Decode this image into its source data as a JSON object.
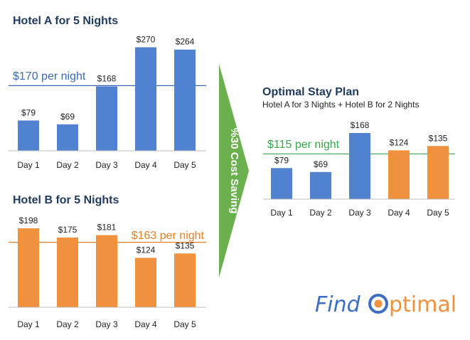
{
  "chart_data": [
    {
      "type": "bar",
      "title": "Hotel A for 5 Nights",
      "categories": [
        "Day 1",
        "Day 2",
        "Day 3",
        "Day 4",
        "Day 5"
      ],
      "values": [
        79,
        69,
        168,
        270,
        264
      ],
      "value_labels": [
        "$79",
        "$69",
        "$168",
        "$270",
        "$264"
      ],
      "colors": [
        "#5182d0",
        "#5182d0",
        "#5182d0",
        "#5182d0",
        "#5182d0"
      ],
      "reference_line": {
        "value": 170,
        "label": "$170 per night",
        "color": "#3c69b8"
      }
    },
    {
      "type": "bar",
      "title": "Hotel B for 5 Nights",
      "categories": [
        "Day 1",
        "Day 2",
        "Day 3",
        "Day 4",
        "Day 5"
      ],
      "values": [
        198,
        175,
        181,
        124,
        135
      ],
      "value_labels": [
        "$198",
        "$175",
        "$181",
        "$124",
        "$135"
      ],
      "colors": [
        "#f0913e",
        "#f0913e",
        "#f0913e",
        "#f0913e",
        "#f0913e"
      ],
      "reference_line": {
        "value": 163,
        "label": "$163 per night",
        "color": "#e8812a"
      }
    },
    {
      "type": "bar",
      "title": "Optimal Stay Plan",
      "subtitle": "Hotel A for 3 Nights + Hotel B for 2 Nights",
      "categories": [
        "Day 1",
        "Day 2",
        "Day 3",
        "Day 4",
        "Day 5"
      ],
      "values": [
        79,
        69,
        168,
        124,
        135
      ],
      "value_labels": [
        "$79",
        "$69",
        "$168",
        "$124",
        "$135"
      ],
      "colors": [
        "#5182d0",
        "#5182d0",
        "#5182d0",
        "#f0913e",
        "#f0913e"
      ],
      "reference_line": {
        "value": 115,
        "label": "$115 per night",
        "color": "#3aa64a"
      }
    }
  ],
  "arrow": {
    "label": "%30 Cost Saving",
    "color": "#6ab04c"
  },
  "logo": {
    "text_find": "Find",
    "text_optimal": "ptimal",
    "color_find": "#3c6fc4",
    "color_optimal": "#f0913e"
  }
}
